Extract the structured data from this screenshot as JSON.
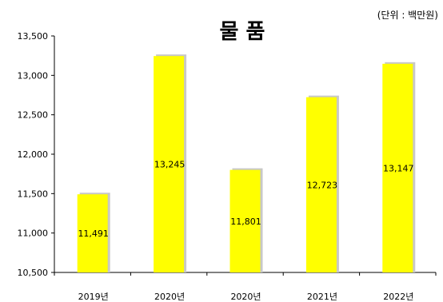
{
  "chart_data": {
    "type": "bar",
    "title": "물 품",
    "unit_note": "(단위 : 백만원)",
    "categories": [
      "2019년",
      "2020년",
      "2020년",
      "2021년",
      "2022년"
    ],
    "values": [
      11491,
      13245,
      11801,
      12723,
      13147
    ],
    "data_labels": [
      "11,491",
      "13,245",
      "11,801",
      "12,723",
      "13,147"
    ],
    "ylim": [
      10500,
      13500
    ],
    "yticks": [
      10500,
      11000,
      11500,
      12000,
      12500,
      13000,
      13500
    ],
    "ytick_labels": [
      "10,500",
      "11,000",
      "11,500",
      "12,000",
      "12,500",
      "13,000",
      "13,500"
    ],
    "grid": false,
    "legend": "none",
    "colors": {
      "bar": "#FFFF00",
      "bar_shadow": "#C8C8C8",
      "axis": "#000000"
    }
  }
}
